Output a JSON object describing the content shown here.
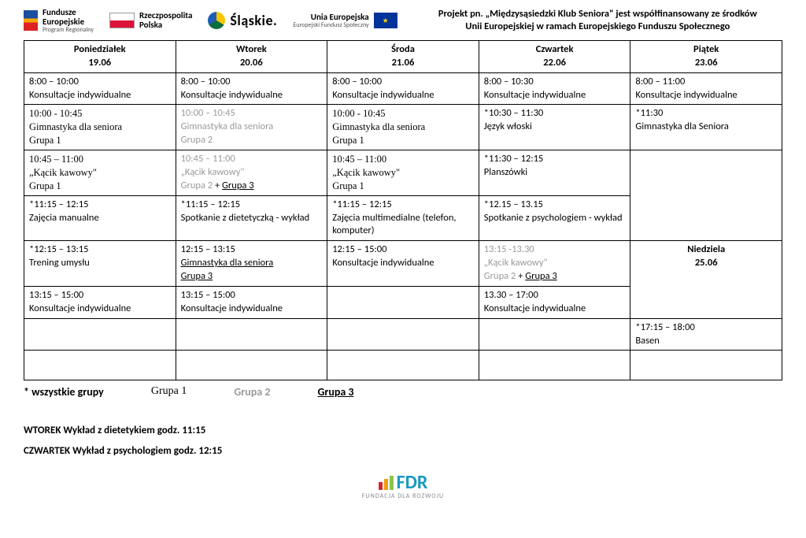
{
  "header": {
    "fe": {
      "t1": "Fundusze",
      "t2": "Europejskie",
      "t3": "Program Regionalny"
    },
    "rp": {
      "t1": "Rzeczpospolita",
      "t2": "Polska"
    },
    "slaskie": "Śląskie.",
    "ue": {
      "t1": "Unia Europejska",
      "t2": "Europejski Fundusz Społeczny"
    },
    "project_line1": "Projekt pn. „Międzysąsiedzki Klub Seniora\" jest współfinansowany ze środków",
    "project_line2": "Unii Europejskiej w ramach Europejskiego Funduszu Społecznego"
  },
  "days": {
    "mon": {
      "name": "Poniedziałek",
      "date": "19.06"
    },
    "tue": {
      "name": "Wtorek",
      "date": "20.06"
    },
    "wed": {
      "name": "Środa",
      "date": "21.06"
    },
    "thu": {
      "name": "Czwartek",
      "date": "22.06"
    },
    "fri": {
      "name": "Piątek",
      "date": "23.06"
    }
  },
  "cells": {
    "r1": {
      "mon_t": "8:00 – 10:00",
      "mon_a": "Konsultacje indywidualne",
      "tue_t": "8:00 – 10:00",
      "tue_a": "Konsultacje indywidualne",
      "wed_t": "8:00 – 10:00",
      "wed_a": "Konsultacje indywidualne",
      "thu_t": "8:00 – 10:30",
      "thu_a": "Konsultacje indywidualne",
      "fri_t": "8:00 – 11:00",
      "fri_a": "Konsultacje indywidualne"
    },
    "r2": {
      "mon_t": "10:00 - 10:45",
      "mon_a": "Gimnastyka dla seniora",
      "mon_g": "Grupa 1",
      "tue_t": "10:00 – 10:45",
      "tue_a": "Gimnastyka dla seniora",
      "tue_g": "Grupa 2",
      "wed_t": "10:00 - 10:45",
      "wed_a": "Gimnastyka dla seniora",
      "wed_g": "Grupa 1",
      "thu_t": "*10:30 – 11:30",
      "thu_a": "Język włoski",
      "fri_t": "*11:30",
      "fri_a": "Gimnastyka dla Seniora"
    },
    "r3": {
      "mon_t": "10:45 – 11:00",
      "mon_a": "„Kącik kawowy\"",
      "mon_g": "Grupa 1",
      "tue_t": "10:45 – 11:00",
      "tue_a": "„Kącik kawowy\"",
      "tue_g2": "Grupa 2",
      "tue_plus": " + ",
      "tue_g3": "Grupa 3",
      "wed_t": "10:45 – 11:00",
      "wed_a": "„Kącik kawowy\"",
      "wed_g": "Grupa 1",
      "thu_t": "*11:30 – 12:15",
      "thu_a": "Planszówki"
    },
    "r4": {
      "mon_t": "*11:15 – 12:15",
      "mon_a": "Zajęcia manualne",
      "tue_t": "*11:15 – 12:15",
      "tue_a": "Spotkanie z dietetyczką - wykład",
      "wed_t": "*11:15 – 12:15",
      "wed_a": "Zajęcia multimedialne (telefon, komputer)",
      "thu_t": "*12.15 – 13.15",
      "thu_a": "Spotkanie z psychologiem - wykład"
    },
    "r5": {
      "mon_t": "*12:15 – 13:15",
      "mon_a": "Trening umysłu",
      "tue_t": "12:15 – 13:15",
      "tue_a": "Gimnastyka dla seniora",
      "tue_g": "Grupa 3",
      "wed_t": "12:15 – 15:00",
      "wed_a": "Konsultacje indywidualne",
      "thu_t": "13:15 -13.30",
      "thu_a": "„Kącik kawowy\"",
      "thu_g2": "Grupa 2",
      "thu_plus": " + ",
      "thu_g3": "Grupa 3",
      "fri_a": "Niedziela",
      "fri_b": "25.06"
    },
    "r6": {
      "mon_t": "13:15 – 15:00",
      "mon_a": "Konsultacje indywidualne",
      "tue_t": "13:15 – 15:00",
      "tue_a": "Konsultacje indywidualne",
      "thu_t": "13.30 – 17:00",
      "thu_a": "Konsultacje indywidualne"
    },
    "r7": {
      "fri_t": " *17:15 – 18:00",
      "fri_a": "Basen"
    }
  },
  "legend": {
    "all": "* wszystkie grupy",
    "g1": "Grupa 1",
    "g2": "Grupa 2",
    "g3": "Grupa 3"
  },
  "notes": {
    "n1": "WTOREK Wykład z dietetykiem godz. 11:15",
    "n2": "CZWARTEK Wykład z psychologiem godz. 12:15"
  },
  "footer": {
    "fdr": "FDR",
    "fdr_sub": "FUNDACJA DLA ROZWOJU"
  }
}
